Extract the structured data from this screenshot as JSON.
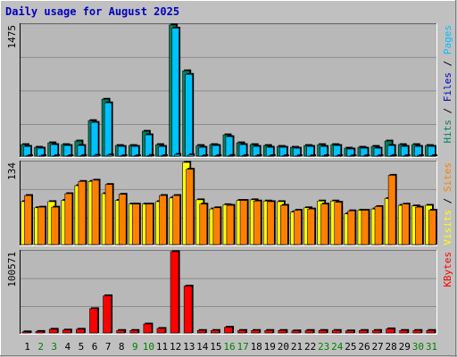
{
  "title": "Daily usage for August 2025",
  "colors": {
    "background": "#c0c0c0",
    "plot_bg": "#b8b8b8",
    "grid": "#8c8c8c",
    "title": "#0000c0",
    "hits": "#008060",
    "files": "#00c0ff",
    "pages": "#00c0ff",
    "visits": "#ffff00",
    "sites": "#ff8000",
    "kbytes": "#ff0000",
    "weekday": "#000000",
    "weekend": "#008000"
  },
  "chart_data": [
    {
      "type": "bar",
      "name": "hits-files-pages",
      "ymax_label": "1475",
      "ylim": [
        0,
        1475
      ],
      "legend": [
        {
          "label": "Hits",
          "color": "#008060"
        },
        {
          "label": "Files",
          "color": "#0000c0"
        },
        {
          "label": "Pages",
          "color": "#00c0ff"
        }
      ],
      "series": [
        {
          "name": "Hits",
          "values": [
            130,
            100,
            150,
            130,
            170,
            400,
            640,
            120,
            120,
            280,
            130,
            1475,
            960,
            120,
            130,
            240,
            150,
            130,
            120,
            110,
            100,
            120,
            130,
            130,
            90,
            100,
            110,
            170,
            130,
            130,
            120
          ]
        },
        {
          "name": "Files",
          "values": [
            110,
            90,
            130,
            120,
            120,
            380,
            600,
            110,
            110,
            240,
            110,
            1440,
            920,
            100,
            120,
            220,
            130,
            110,
            100,
            100,
            90,
            110,
            110,
            120,
            80,
            90,
            90,
            120,
            110,
            110,
            110
          ]
        },
        {
          "name": "Pages",
          "values": [
            5,
            4,
            6,
            5,
            6,
            10,
            14,
            5,
            5,
            8,
            5,
            20,
            16,
            5,
            5,
            7,
            6,
            5,
            5,
            5,
            4,
            5,
            5,
            5,
            4,
            4,
            5,
            6,
            5,
            5,
            5
          ]
        }
      ]
    },
    {
      "type": "bar",
      "name": "visits-sites",
      "ymax_label": "134",
      "ylim": [
        0,
        134
      ],
      "legend": [
        {
          "label": "Visits",
          "color": "#ffff00"
        },
        {
          "label": "Sites",
          "color": "#ff8000"
        }
      ],
      "series": [
        {
          "name": "Visits",
          "values": [
            70,
            60,
            70,
            72,
            96,
            103,
            83,
            72,
            66,
            66,
            70,
            76,
            134,
            73,
            58,
            65,
            72,
            73,
            71,
            70,
            53,
            60,
            71,
            71,
            50,
            56,
            58,
            75,
            64,
            63,
            64
          ]
        },
        {
          "name": "Sites",
          "values": [
            80,
            61,
            61,
            83,
            103,
            105,
            98,
            82,
            66,
            66,
            80,
            80,
            123,
            66,
            60,
            64,
            72,
            71,
            70,
            64,
            56,
            58,
            66,
            69,
            55,
            56,
            62,
            113,
            66,
            61,
            56
          ]
        }
      ]
    },
    {
      "type": "bar",
      "name": "kbytes",
      "ymax_label": "100571",
      "ylim": [
        0,
        100571
      ],
      "legend": [
        {
          "label": "KBytes",
          "color": "#ff0000"
        }
      ],
      "series": [
        {
          "name": "KBytes",
          "values": [
            1300,
            1800,
            4500,
            3500,
            4500,
            30000,
            46000,
            3000,
            3000,
            11000,
            5500,
            100571,
            58000,
            3000,
            3000,
            7000,
            3000,
            3000,
            3000,
            3000,
            2500,
            3000,
            3000,
            3000,
            2500,
            3000,
            3000,
            5000,
            3000,
            3000,
            3000
          ]
        }
      ]
    }
  ],
  "days": [
    "1",
    "2",
    "3",
    "4",
    "5",
    "6",
    "7",
    "8",
    "9",
    "10",
    "11",
    "12",
    "13",
    "14",
    "15",
    "16",
    "17",
    "18",
    "19",
    "20",
    "21",
    "22",
    "23",
    "24",
    "25",
    "26",
    "27",
    "28",
    "29",
    "30",
    "31"
  ],
  "weekend_days": [
    2,
    3,
    9,
    10,
    16,
    17,
    23,
    24,
    30,
    31
  ]
}
